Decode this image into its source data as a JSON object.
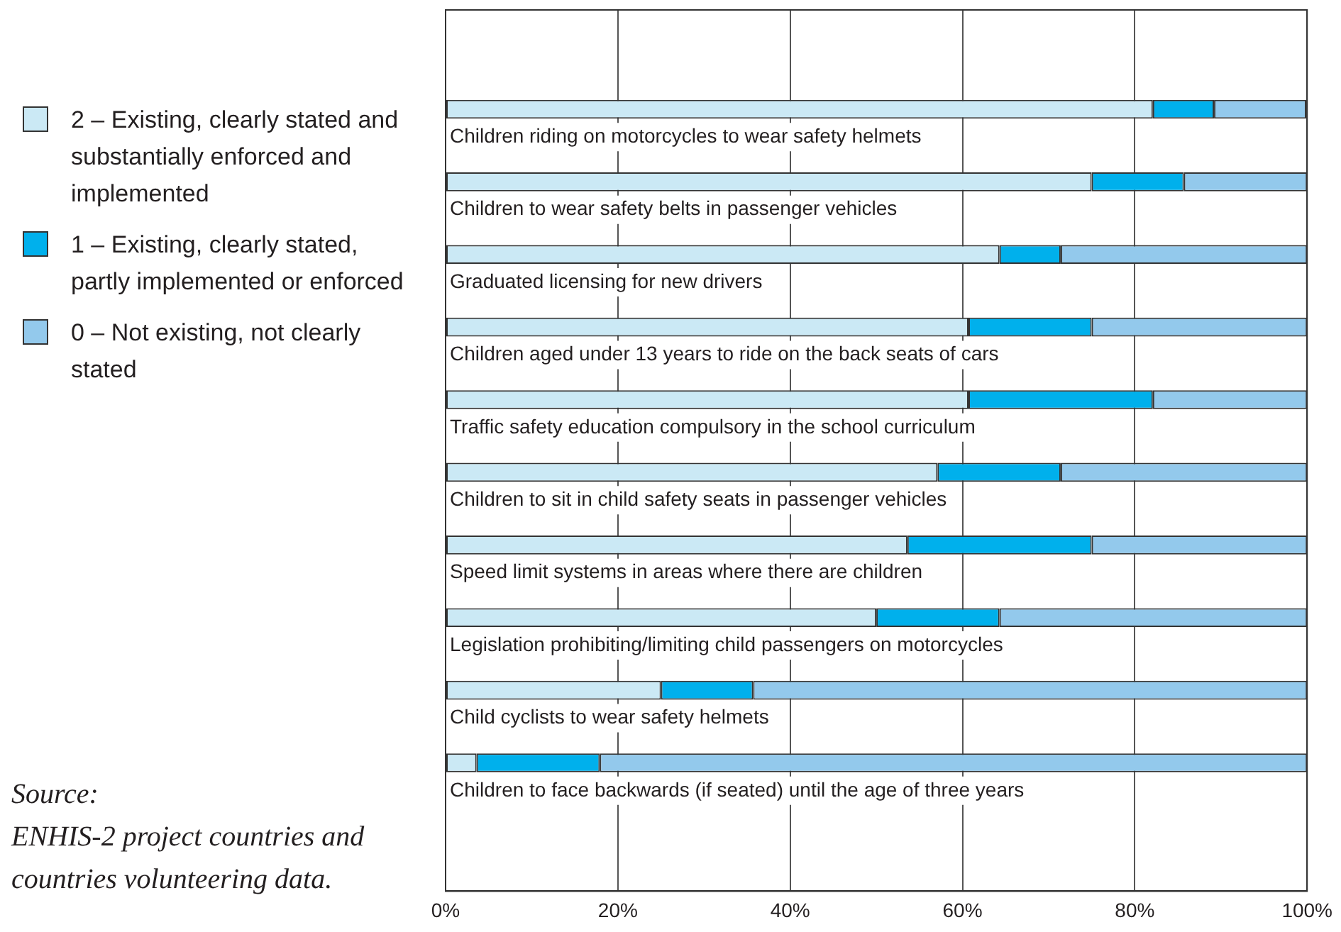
{
  "chart_data": {
    "type": "bar",
    "orientation": "horizontal",
    "stacked": true,
    "categories": [
      "Children riding on motorcycles to wear safety helmets",
      "Children to wear safety belts in passenger vehicles",
      "Graduated licensing for new drivers",
      "Children aged under 13 years to ride on the back seats of cars",
      "Traffic safety education compulsory in the school curriculum",
      "Children to sit in child safety seats in passenger vehicles",
      "Speed limit systems in areas where there are children",
      "Legislation prohibiting/limiting child passengers on motorcycles",
      "Child cyclists to wear safety helmets",
      "Children to face backwards (if seated) until the age of three years"
    ],
    "series": [
      {
        "name": "2 – Existing, clearly stated and substantially enforced and implemented",
        "color": "#cbe9f5",
        "values": [
          82.1,
          75,
          64.3,
          60.7,
          60.7,
          57.1,
          53.6,
          50,
          25,
          3.6
        ]
      },
      {
        "name": "1 – Existing, clearly stated, partly implemented or enforced",
        "color": "#00b0ec",
        "values": [
          7.1,
          10.7,
          7.1,
          14.3,
          21.4,
          14.3,
          21.4,
          14.3,
          10.7,
          14.3
        ]
      },
      {
        "name": "0 – Not existing, not clearly stated",
        "color": "#93c9ec",
        "values": [
          10.7,
          14.3,
          28.6,
          25,
          17.9,
          28.6,
          25,
          35.7,
          64.3,
          82.1
        ]
      }
    ],
    "xlim": [
      0,
      100
    ],
    "xticks": [
      {
        "value": 0,
        "label": "0%"
      },
      {
        "value": 20,
        "label": "20%"
      },
      {
        "value": 40,
        "label": "40%"
      },
      {
        "value": 60,
        "label": "60%"
      },
      {
        "value": 80,
        "label": "80%"
      },
      {
        "value": 100,
        "label": "100%"
      }
    ],
    "grid": "x",
    "legend": "left",
    "annotations": [
      "Source:\nENHIS-2 project countries and countries volunteering data."
    ]
  }
}
